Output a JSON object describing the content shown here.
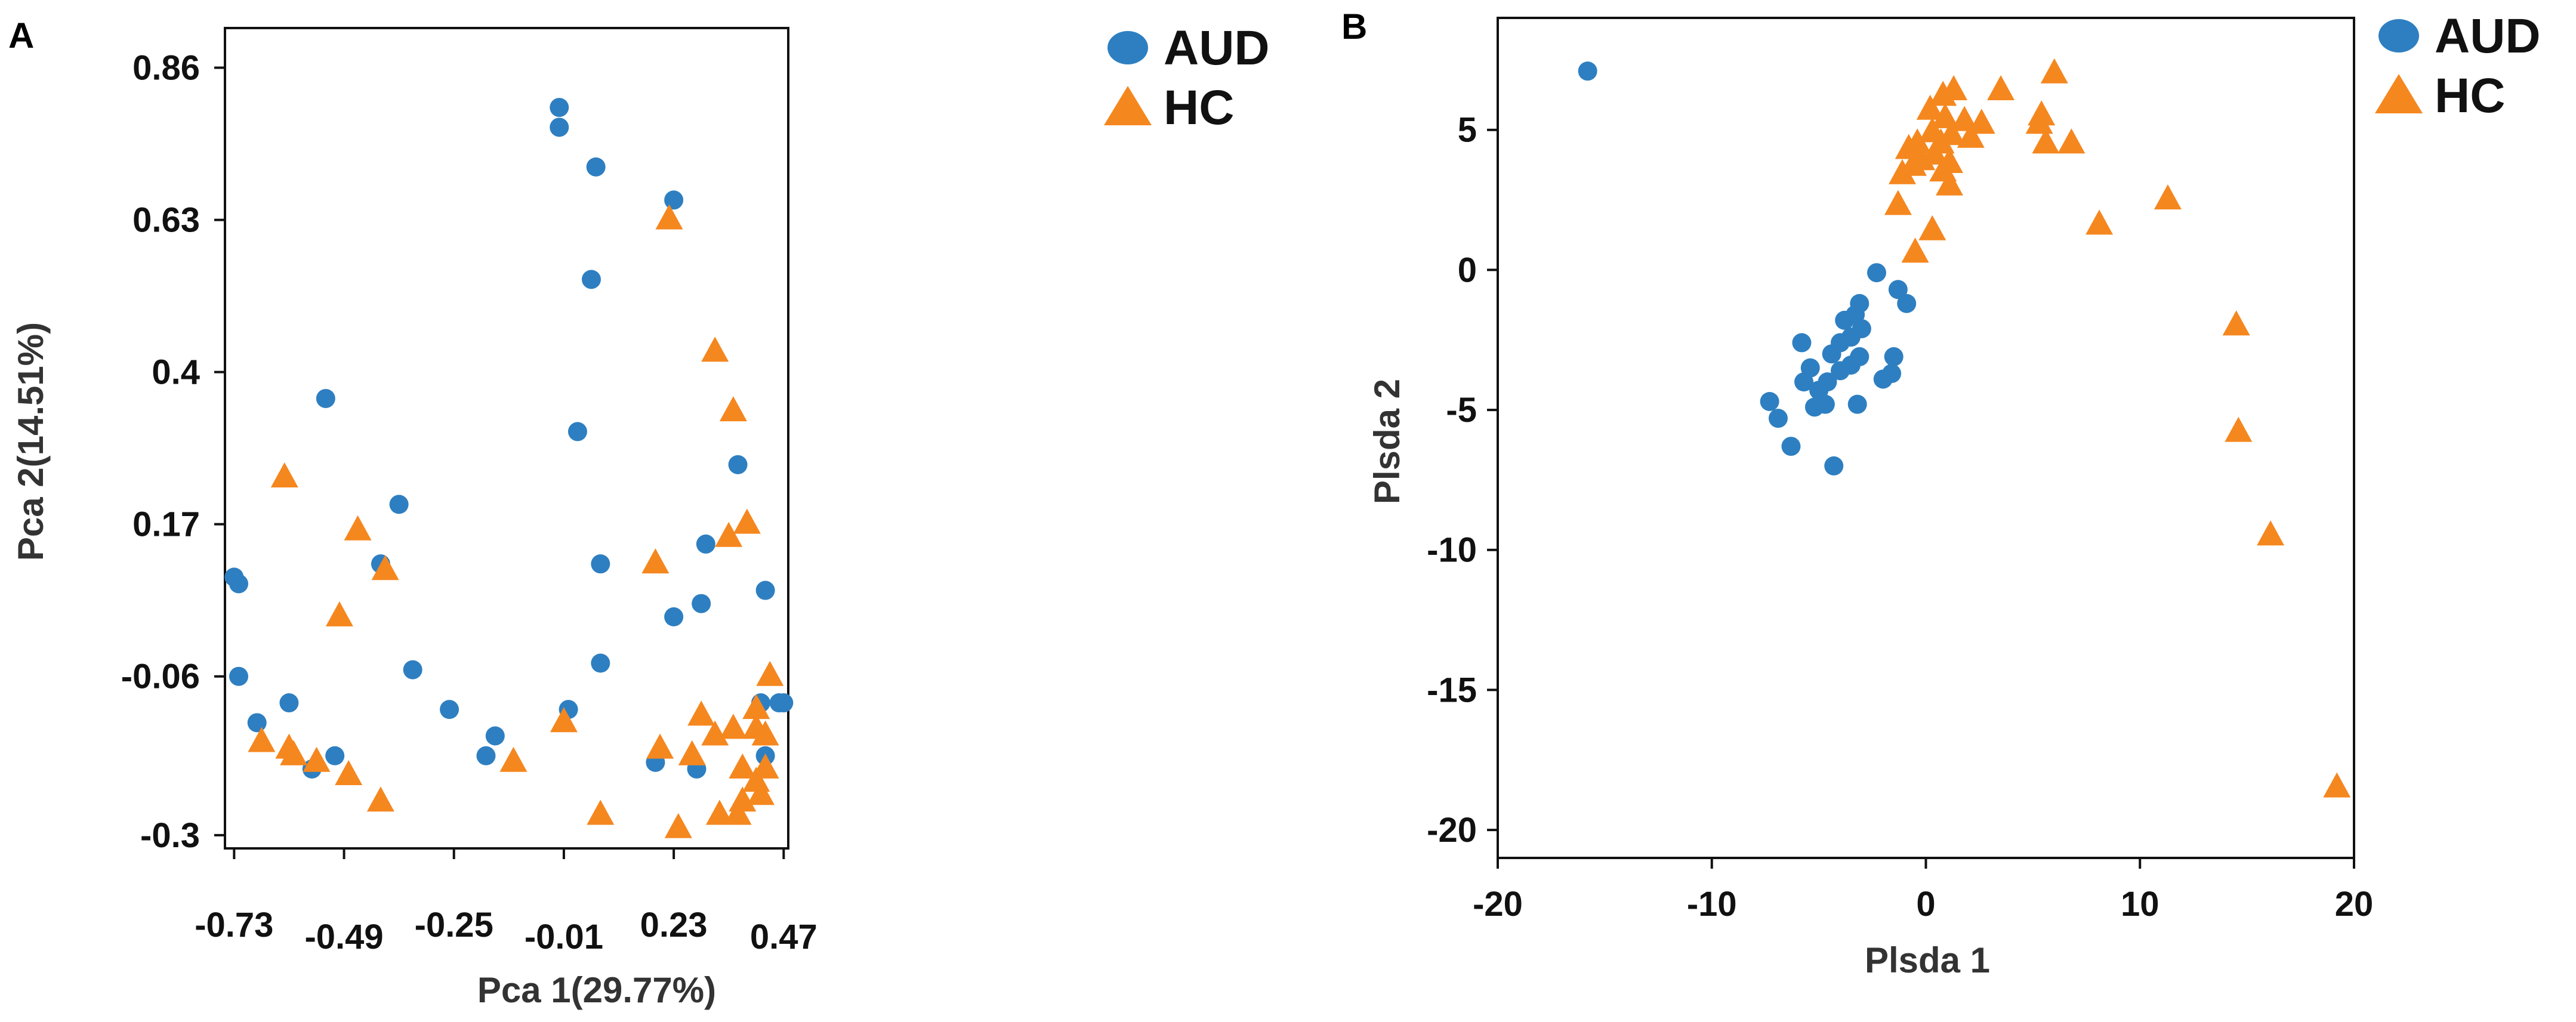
{
  "colors": {
    "aud": "#2e7fc1",
    "hc": "#f5871f"
  },
  "chart_data": [
    {
      "type": "scatter",
      "panel_label": "A",
      "xlabel": "Pca 1(29.77%)",
      "ylabel": "Pca 2(14.51%)",
      "xlim": [
        -0.75,
        0.48
      ],
      "ylim": [
        -0.32,
        0.92
      ],
      "xticks": [
        -0.73,
        -0.49,
        -0.25,
        -0.01,
        0.23,
        0.47
      ],
      "xtick_labels": [
        "-0.73",
        "-0.49",
        "-0.25",
        "-0.01",
        "0.23",
        "0.47"
      ],
      "yticks": [
        0.86,
        0.63,
        0.4,
        0.17,
        -0.06,
        -0.3
      ],
      "ytick_labels": [
        "0.86",
        "0.63",
        "0.4",
        "0.17",
        "-0.06",
        "-0.3"
      ],
      "legend_position": "top-right",
      "series": [
        {
          "name": "AUD",
          "marker": "circle",
          "points": [
            [
              -0.02,
              0.8
            ],
            [
              -0.02,
              0.77
            ],
            [
              0.06,
              0.71
            ],
            [
              0.05,
              0.54
            ],
            [
              0.23,
              0.66
            ],
            [
              -0.53,
              0.36
            ],
            [
              -0.37,
              0.2
            ],
            [
              0.02,
              0.31
            ],
            [
              0.07,
              0.11
            ],
            [
              0.37,
              0.26
            ],
            [
              0.3,
              0.14
            ],
            [
              -0.41,
              0.11
            ],
            [
              -0.73,
              0.09
            ],
            [
              -0.72,
              0.08
            ],
            [
              0.43,
              0.07
            ],
            [
              -0.34,
              -0.05
            ],
            [
              0.23,
              0.03
            ],
            [
              0.29,
              0.05
            ],
            [
              0.07,
              -0.04
            ],
            [
              -0.72,
              -0.06
            ],
            [
              -0.68,
              -0.13
            ],
            [
              -0.61,
              -0.1
            ],
            [
              -0.26,
              -0.11
            ],
            [
              -0.18,
              -0.18
            ],
            [
              -0.16,
              -0.15
            ],
            [
              0.0,
              -0.11
            ],
            [
              0.19,
              -0.19
            ],
            [
              0.28,
              -0.2
            ],
            [
              0.42,
              -0.1
            ],
            [
              0.46,
              -0.1
            ],
            [
              0.47,
              -0.1
            ],
            [
              0.43,
              -0.18
            ],
            [
              -0.56,
              -0.2
            ],
            [
              -0.51,
              -0.18
            ]
          ]
        },
        {
          "name": "HC",
          "marker": "triangle",
          "points": [
            [
              0.22,
              0.63
            ],
            [
              0.32,
              0.43
            ],
            [
              0.36,
              0.34
            ],
            [
              -0.62,
              0.24
            ],
            [
              -0.46,
              0.16
            ],
            [
              0.35,
              0.15
            ],
            [
              0.39,
              0.17
            ],
            [
              0.19,
              0.11
            ],
            [
              -0.4,
              0.1
            ],
            [
              -0.5,
              0.03
            ],
            [
              0.29,
              -0.12
            ],
            [
              -0.01,
              -0.13
            ],
            [
              -0.67,
              -0.16
            ],
            [
              0.44,
              -0.06
            ],
            [
              0.41,
              -0.11
            ],
            [
              0.43,
              -0.15
            ],
            [
              0.36,
              -0.14
            ],
            [
              0.41,
              -0.14
            ],
            [
              0.2,
              -0.17
            ],
            [
              0.27,
              -0.18
            ],
            [
              0.32,
              -0.15
            ],
            [
              -0.61,
              -0.17
            ],
            [
              -0.6,
              -0.18
            ],
            [
              -0.12,
              -0.19
            ],
            [
              0.38,
              -0.2
            ],
            [
              -0.55,
              -0.19
            ],
            [
              -0.48,
              -0.21
            ],
            [
              0.41,
              -0.22
            ],
            [
              0.42,
              -0.24
            ],
            [
              -0.41,
              -0.25
            ],
            [
              0.07,
              -0.27
            ],
            [
              0.24,
              -0.29
            ],
            [
              0.33,
              -0.27
            ],
            [
              0.37,
              -0.27
            ],
            [
              0.38,
              -0.25
            ],
            [
              0.43,
              -0.2
            ]
          ]
        }
      ]
    },
    {
      "type": "scatter",
      "panel_label": "B",
      "xlabel": "Plsda 1",
      "ylabel": "Plsda 2",
      "xlim": [
        -20,
        20
      ],
      "ylim": [
        -21,
        9
      ],
      "xticks": [
        -20,
        -10,
        0,
        10,
        20
      ],
      "xtick_labels": [
        "-20",
        "-10",
        "0",
        "10",
        "20"
      ],
      "yticks": [
        5,
        0,
        -5,
        -10,
        -15,
        -20
      ],
      "ytick_labels": [
        "5",
        "0",
        "-5",
        "-10",
        "-15",
        "-20"
      ],
      "legend_position": "top-right",
      "series": [
        {
          "name": "AUD",
          "marker": "circle",
          "points": [
            [
              -15.8,
              7.1
            ],
            [
              -2.3,
              -0.1
            ],
            [
              -1.3,
              -0.7
            ],
            [
              -0.9,
              -1.2
            ],
            [
              -3.1,
              -1.2
            ],
            [
              -3.3,
              -1.6
            ],
            [
              -3.8,
              -1.8
            ],
            [
              -3.0,
              -2.1
            ],
            [
              -3.5,
              -2.4
            ],
            [
              -4.0,
              -2.6
            ],
            [
              -5.8,
              -2.6
            ],
            [
              -4.4,
              -3.0
            ],
            [
              -3.1,
              -3.1
            ],
            [
              -1.5,
              -3.1
            ],
            [
              -3.5,
              -3.4
            ],
            [
              -5.4,
              -3.5
            ],
            [
              -4.0,
              -3.6
            ],
            [
              -1.6,
              -3.7
            ],
            [
              -5.7,
              -4.0
            ],
            [
              -4.6,
              -4.0
            ],
            [
              -2.0,
              -3.9
            ],
            [
              -5.0,
              -4.3
            ],
            [
              -4.7,
              -4.8
            ],
            [
              -5.2,
              -4.9
            ],
            [
              -3.2,
              -4.8
            ],
            [
              -7.3,
              -4.7
            ],
            [
              -6.9,
              -5.3
            ],
            [
              -6.3,
              -6.3
            ],
            [
              -4.3,
              -7.0
            ]
          ]
        },
        {
          "name": "HC",
          "marker": "triangle",
          "points": [
            [
              6.0,
              7.0
            ],
            [
              0.8,
              6.2
            ],
            [
              1.3,
              6.4
            ],
            [
              3.5,
              6.4
            ],
            [
              0.2,
              5.7
            ],
            [
              5.4,
              5.5
            ],
            [
              0.9,
              5.4
            ],
            [
              1.8,
              5.3
            ],
            [
              2.6,
              5.2
            ],
            [
              5.3,
              5.2
            ],
            [
              0.3,
              4.9
            ],
            [
              1.2,
              4.8
            ],
            [
              2.1,
              4.7
            ],
            [
              -0.4,
              4.5
            ],
            [
              0.7,
              4.5
            ],
            [
              5.6,
              4.5
            ],
            [
              6.8,
              4.5
            ],
            [
              -0.8,
              4.3
            ],
            [
              0.4,
              4.1
            ],
            [
              -0.2,
              3.9
            ],
            [
              -0.6,
              3.7
            ],
            [
              1.1,
              3.8
            ],
            [
              0.8,
              3.5
            ],
            [
              -1.1,
              3.4
            ],
            [
              1.1,
              3.0
            ],
            [
              -1.3,
              2.3
            ],
            [
              0.3,
              1.4
            ],
            [
              -0.5,
              0.6
            ],
            [
              8.1,
              1.6
            ],
            [
              11.3,
              2.5
            ],
            [
              14.5,
              -2.0
            ],
            [
              14.6,
              -5.8
            ],
            [
              16.1,
              -9.5
            ],
            [
              19.2,
              -18.5
            ]
          ]
        }
      ]
    }
  ]
}
